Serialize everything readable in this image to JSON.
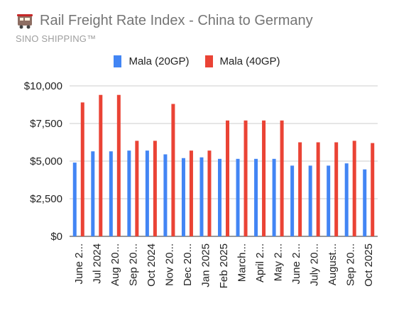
{
  "header": {
    "title": "Rail Freight Rate Index - China to Germany",
    "subtitle": "SINO SHIPPING™",
    "icon": "train-icon"
  },
  "chart_data": {
    "type": "bar",
    "title": "Rail Freight Rate Index - China to Germany",
    "subtitle": "SINO SHIPPING™",
    "xlabel": "",
    "ylabel": "",
    "ylim": [
      0,
      10000
    ],
    "yticks": [
      0,
      2500,
      5000,
      7500,
      10000
    ],
    "ytick_labels": [
      "$0",
      "$2,500",
      "$5,000",
      "$7,500",
      "$10,000"
    ],
    "grid": true,
    "legend_position": "top",
    "categories": [
      "June 2...",
      "Jul 2024",
      "Aug 20...",
      "Sep 20...",
      "Oct 2024",
      "Nov 20...",
      "Dec 20...",
      "Jan 2025",
      "Feb 2025",
      "March...",
      "April 2...",
      "May 2...",
      "June 2...",
      "July 20...",
      "August...",
      "Sep 20...",
      "Oct 2025"
    ],
    "series": [
      {
        "name": "Mala (20GP)",
        "color": "#4285f4",
        "values": [
          4900,
          5650,
          5650,
          5700,
          5700,
          5450,
          5200,
          5250,
          5150,
          5150,
          5150,
          5150,
          4700,
          4700,
          4700,
          4850,
          4450
        ]
      },
      {
        "name": "Mala (40GP)",
        "color": "#ea4335",
        "values": [
          8900,
          9400,
          9400,
          6350,
          6350,
          8800,
          5700,
          5700,
          7700,
          7700,
          7700,
          7700,
          6250,
          6250,
          6250,
          6350,
          6200
        ]
      }
    ]
  }
}
